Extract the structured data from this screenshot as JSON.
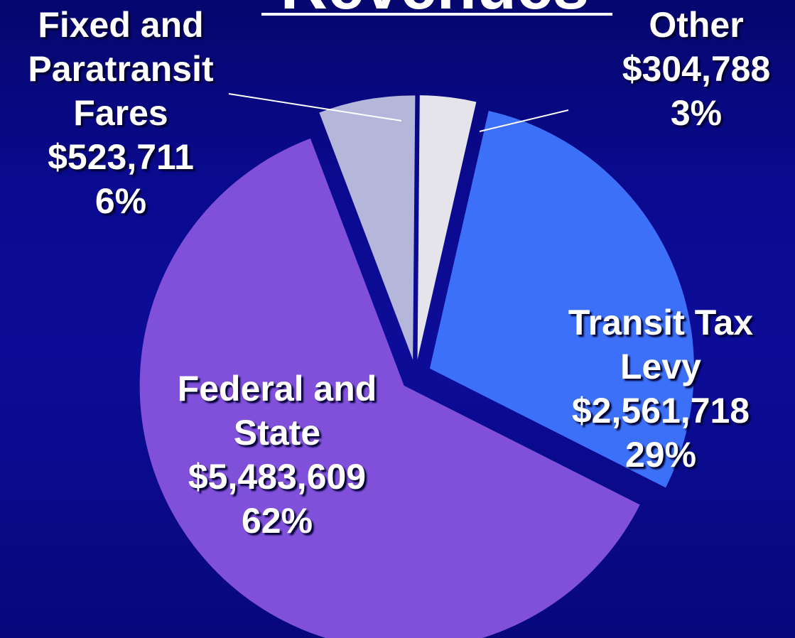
{
  "chart_data": {
    "type": "pie",
    "title": "Revenues",
    "categories": [
      "Other",
      "Transit Tax Levy",
      "Federal and State",
      "Fixed and Paratransit Fares"
    ],
    "values": [
      304788,
      2561718,
      5483609,
      523711
    ],
    "value_labels": [
      "$304,788",
      "$2,561,718",
      "$5,483,609",
      "$523,711"
    ],
    "percentages": [
      3,
      29,
      62,
      6
    ],
    "percentage_labels": [
      "3%",
      "29%",
      "62%",
      "6%"
    ],
    "colors": [
      "#e4e4ea",
      "#3d70f8",
      "#8050da",
      "#b4b6da"
    ]
  }
}
